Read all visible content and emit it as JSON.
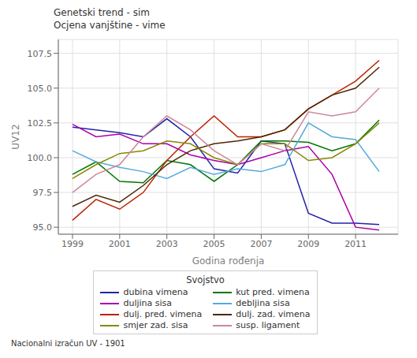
{
  "chart_data": {
    "type": "line",
    "title": "Genetski trend - sim",
    "subtitle": "Ocjena vanjštine - vime",
    "x_label": "Godina rođenja",
    "y_label": "UV12",
    "legend_title": "Svojstvo",
    "annotations": [
      "Nacionalni izračun UV - 1901"
    ],
    "x": [
      1999,
      2000,
      2001,
      2002,
      2003,
      2004,
      2005,
      2006,
      2007,
      2008,
      2009,
      2010,
      2011,
      2012
    ],
    "xlim": [
      1998.4,
      2012.8
    ],
    "xticks": [
      1999,
      2001,
      2003,
      2005,
      2007,
      2009,
      2011
    ],
    "ylim": [
      94.5,
      108.5
    ],
    "yticks": [
      {
        "value": 95.0,
        "label": "95.0"
      },
      {
        "value": 97.5,
        "label": "97.5"
      },
      {
        "value": 100.0,
        "label": "100.0"
      },
      {
        "value": 102.5,
        "label": "102.5"
      },
      {
        "value": 105.0,
        "label": "105.0"
      },
      {
        "value": 107.5,
        "label": "107.5"
      }
    ],
    "grid": true,
    "legend": "bottom",
    "series": [
      {
        "name": "dubina vimena",
        "color": "#2222aa",
        "values": [
          102.2,
          102.0,
          101.8,
          101.5,
          102.8,
          101.5,
          99.2,
          98.9,
          101.2,
          101.0,
          96.0,
          95.3,
          95.3,
          95.2
        ]
      },
      {
        "name": "kut pred. vimena",
        "color": "#007700",
        "values": [
          98.8,
          99.7,
          98.3,
          98.2,
          99.8,
          99.5,
          98.3,
          99.5,
          101.2,
          101.2,
          101.1,
          100.5,
          101.0,
          102.7
        ]
      },
      {
        "name": "duljina sisa",
        "color": "#aa00aa",
        "values": [
          102.4,
          101.5,
          101.7,
          101.0,
          101.0,
          100.2,
          99.8,
          99.5,
          100.0,
          100.5,
          100.8,
          98.8,
          95.0,
          94.8
        ]
      },
      {
        "name": "debljina sisa",
        "color": "#55aadd",
        "values": [
          100.5,
          99.7,
          99.3,
          99.0,
          98.5,
          99.3,
          98.8,
          99.2,
          99.0,
          99.5,
          102.5,
          101.5,
          101.3,
          99.0
        ]
      },
      {
        "name": "dulj. pred. vimena",
        "color": "#bb2200",
        "values": [
          95.5,
          97.0,
          96.3,
          97.5,
          99.8,
          101.5,
          103.0,
          101.5,
          101.5,
          102.0,
          103.5,
          104.5,
          105.5,
          107.0
        ]
      },
      {
        "name": "dulj. zad. vimena",
        "color": "#4d2600",
        "values": [
          96.5,
          97.3,
          96.8,
          98.0,
          99.5,
          100.5,
          101.0,
          101.2,
          101.5,
          102.0,
          103.5,
          104.5,
          105.0,
          106.5
        ]
      },
      {
        "name": "smjer zad. sisa",
        "color": "#888800",
        "values": [
          98.5,
          99.5,
          100.3,
          100.5,
          101.2,
          101.0,
          100.0,
          99.5,
          101.0,
          101.0,
          99.8,
          100.0,
          101.0,
          102.5
        ]
      },
      {
        "name": "susp. ligament",
        "color": "#cc8899",
        "values": [
          97.5,
          98.8,
          99.5,
          101.5,
          103.0,
          102.0,
          100.5,
          99.5,
          101.0,
          100.5,
          103.3,
          103.0,
          103.3,
          105.0
        ]
      }
    ]
  }
}
